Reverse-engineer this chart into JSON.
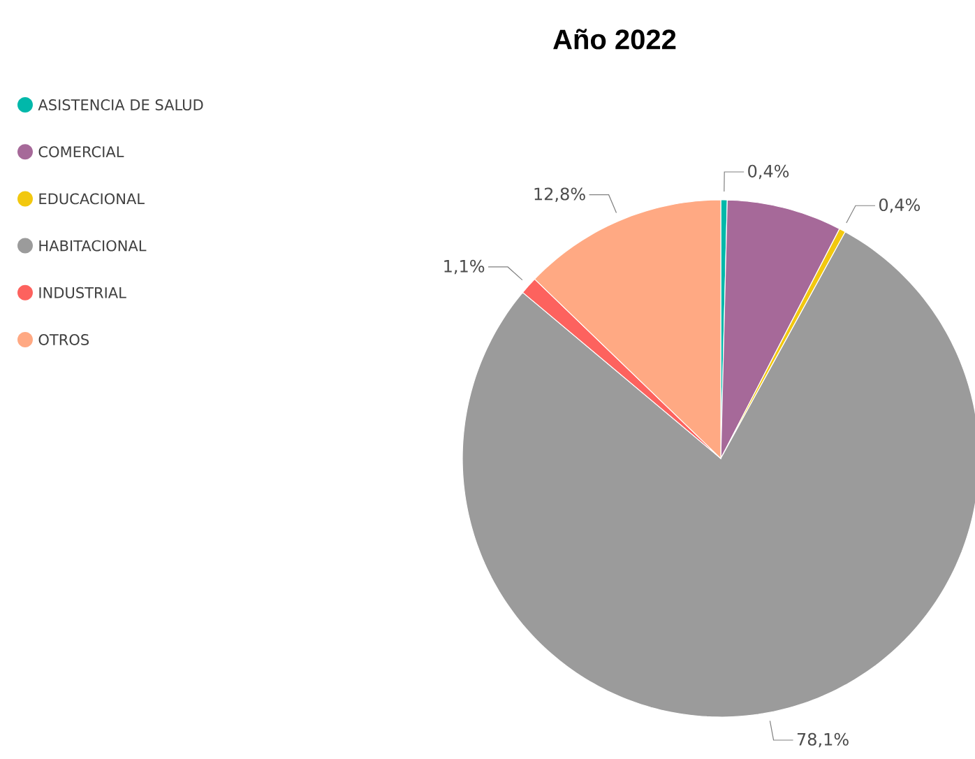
{
  "chart_data": {
    "type": "pie",
    "title": "Año 2022",
    "categories": [
      "ASISTENCIA DE SALUD",
      "COMERCIAL",
      "EDUCACIONAL",
      "HABITACIONAL",
      "INDUSTRIAL",
      "OTROS"
    ],
    "values": [
      0.4,
      7.2,
      0.4,
      78.1,
      1.1,
      12.8
    ],
    "colors": [
      "#01b8aa",
      "#a66999",
      "#f2c80f",
      "#9b9b9b",
      "#fd625e",
      "#ffa983"
    ],
    "value_labels": [
      "0,4%",
      null,
      "0,4%",
      "78,1%",
      "1,1%",
      "12,8%"
    ],
    "legend": "top left"
  }
}
